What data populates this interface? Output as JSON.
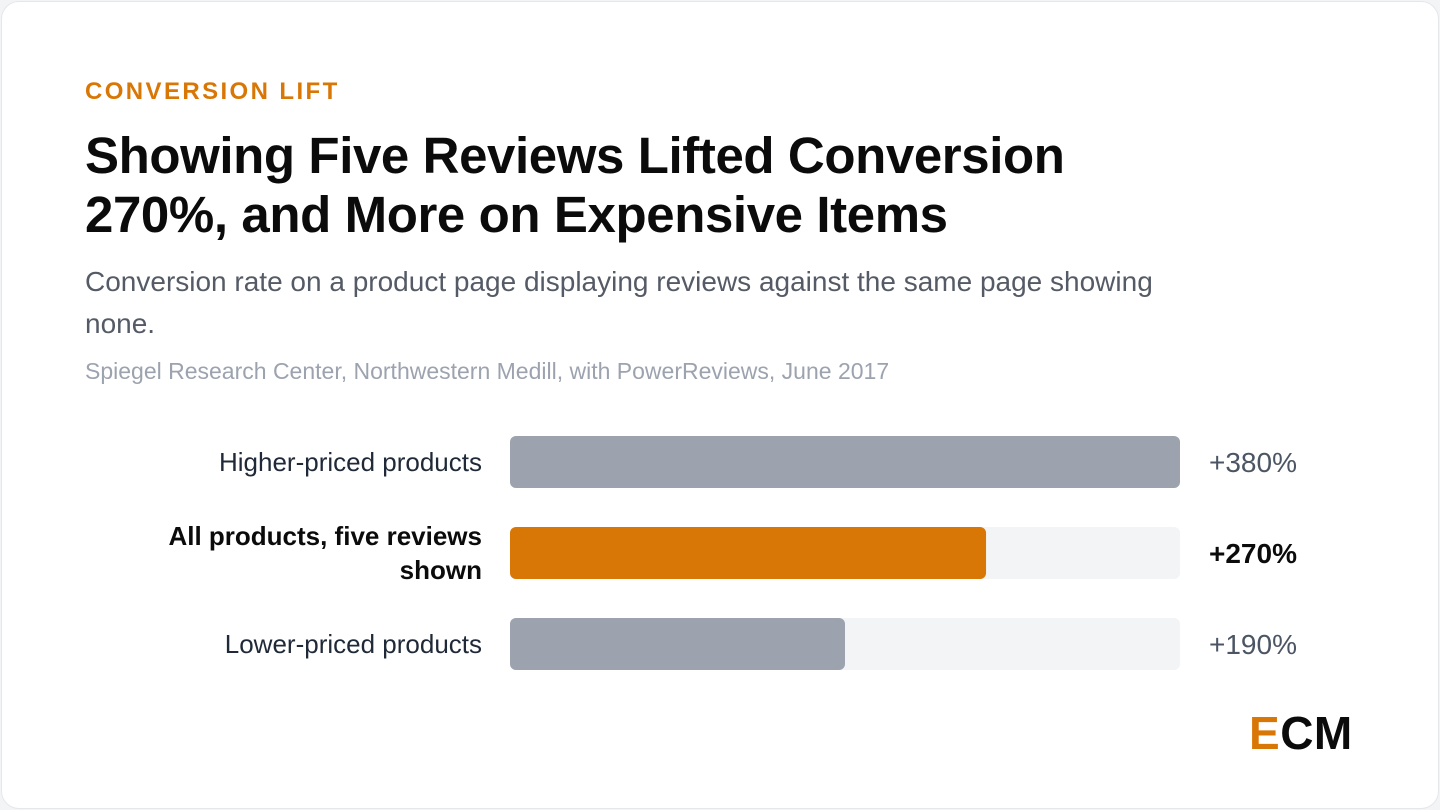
{
  "header": {
    "eyebrow": "CONVERSION LIFT",
    "title": "Showing Five Reviews Lifted Conversion 270%, and More on Expensive Items",
    "subtitle": "Conversion rate on a product page displaying reviews against the same page showing none.",
    "source": "Spiegel Research Center, Northwestern Medill, with PowerReviews, June 2017"
  },
  "logo": {
    "accent_letter": "E",
    "rest": "CM"
  },
  "colors": {
    "accent": "#d97706",
    "bar_muted": "#9ca3af",
    "track": "#f3f4f6"
  },
  "chart_data": {
    "type": "bar",
    "orientation": "horizontal",
    "categories": [
      "Higher-priced products",
      "All products, five reviews shown",
      "Lower-priced products"
    ],
    "values": [
      380,
      270,
      190
    ],
    "value_labels": [
      "+380%",
      "+270%",
      "+190%"
    ],
    "highlight_index": 1,
    "xlim": [
      0,
      380
    ],
    "grid": false
  }
}
